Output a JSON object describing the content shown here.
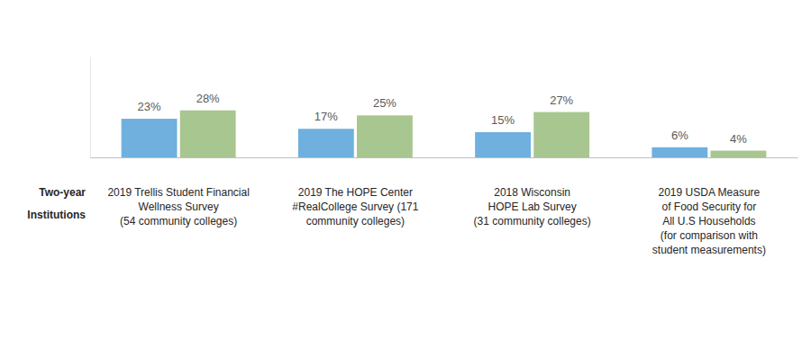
{
  "chart_data": {
    "type": "bar",
    "categories": [
      "2019 Trellis Student Financial\nWellness Survey\n(54 community colleges)",
      "2019 The HOPE Center\n#RealCollege Survey (171\ncommunity colleges)",
      "2018 Wisconsin\nHOPE Lab Survey\n(31 community colleges)",
      "2019 USDA Measure\nof Food Security for\nAll U.S Households\n(for comparison with\nstudent measurements)"
    ],
    "series": [
      {
        "color": "#6fb0df",
        "values": [
          23,
          17,
          15,
          6
        ],
        "value_labels": [
          "23%",
          "17%",
          "15%",
          "6%"
        ]
      },
      {
        "color": "#a8c68f",
        "values": [
          28,
          25,
          27,
          4
        ],
        "value_labels": [
          "28%",
          "25%",
          "27%",
          "4%"
        ]
      }
    ],
    "annotations": [
      {
        "text": "Two-year\nInstitutions"
      }
    ],
    "ylim": [
      0,
      60
    ],
    "yticks": [
      0
    ],
    "data_labels": true,
    "tick_labels": false,
    "grid": false
  }
}
